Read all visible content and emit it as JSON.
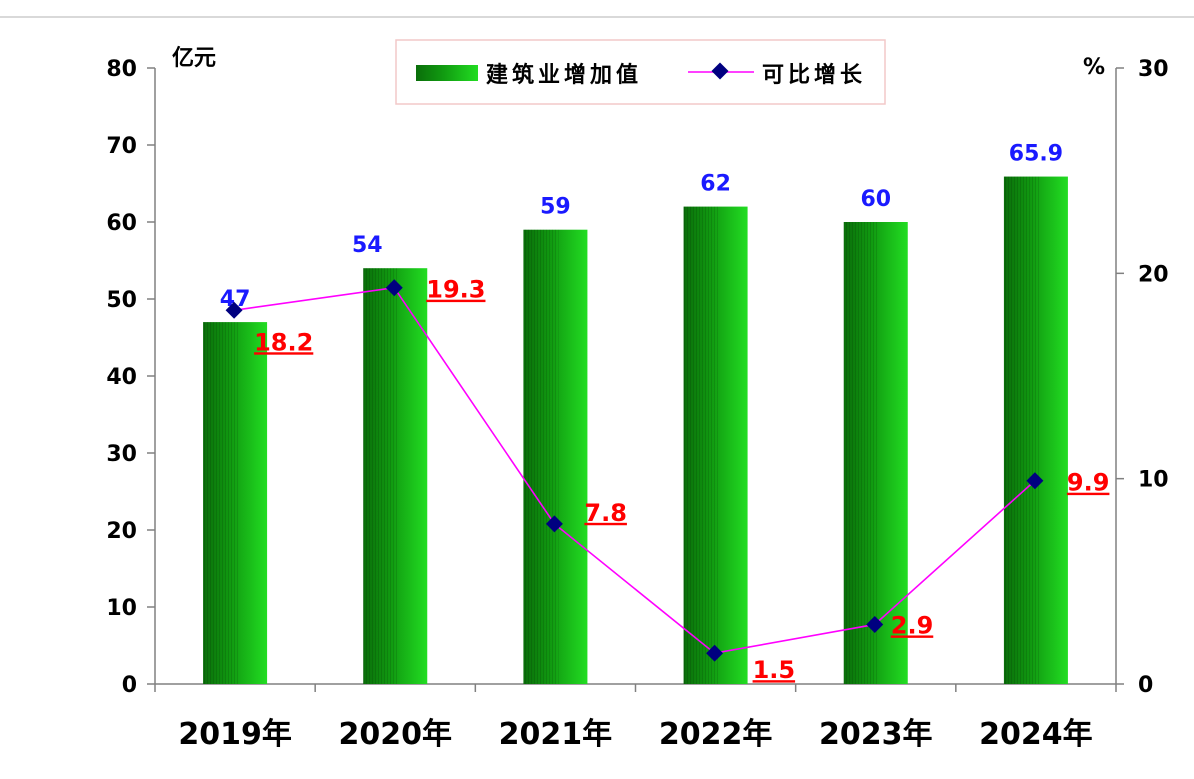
{
  "chart_data": {
    "type": "bar",
    "categories": [
      "2019年",
      "2020年",
      "2021年",
      "2022年",
      "2023年",
      "2024年"
    ],
    "series": [
      {
        "name": "建筑业增加值",
        "type": "bar",
        "axis": "left",
        "values": [
          47,
          54,
          59,
          62,
          60,
          65.9
        ],
        "labels": [
          "47",
          "54",
          "59",
          "62",
          "60",
          "65.9"
        ]
      },
      {
        "name": "可比增长",
        "type": "line",
        "axis": "right",
        "values": [
          18.2,
          19.3,
          7.8,
          1.5,
          2.9,
          9.9
        ],
        "labels": [
          "18.2",
          "19.3",
          "7.8",
          "1.5",
          "2.9",
          "9.9"
        ]
      }
    ],
    "y_left": {
      "unit": "亿元",
      "ylim": [
        0,
        80
      ],
      "ticks": [
        "0",
        "10",
        "20",
        "30",
        "40",
        "50",
        "60",
        "70",
        "80"
      ]
    },
    "y_right": {
      "unit": "%",
      "ylim": [
        0,
        30
      ],
      "ticks": [
        "0",
        "10",
        "20",
        "30"
      ]
    },
    "legend": {
      "placement": "top-center"
    },
    "colors": {
      "bar": "#22dd22",
      "bar_dark": "#0a6e0a",
      "line": "#ff00ff",
      "marker": "#000080",
      "bar_label": "#1a1aff",
      "line_label": "#ff0000"
    }
  }
}
